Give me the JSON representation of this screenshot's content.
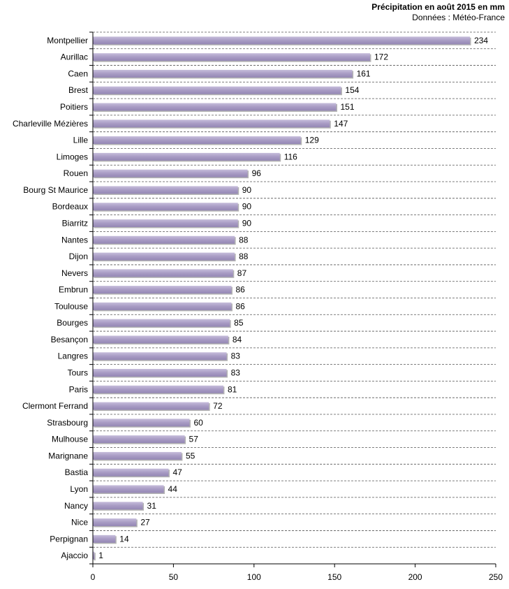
{
  "header": {
    "title": "Précipitation en août 2015 en mm",
    "source": "Données : Météo-France"
  },
  "chart_data": {
    "type": "bar",
    "orientation": "horizontal",
    "title": "Précipitation en août 2015 en mm",
    "subtitle": "Données : Météo-France",
    "xlabel": "",
    "ylabel": "",
    "xlim": [
      0,
      250
    ],
    "x_ticks": [
      0,
      50,
      100,
      150,
      200,
      250
    ],
    "bar_color": "#a89bc4",
    "grid": "horizontal dashed",
    "categories": [
      "Montpellier",
      "Aurillac",
      "Caen",
      "Brest",
      "Poitiers",
      "Charleville Mézières",
      "Lille",
      "Limoges",
      "Rouen",
      "Bourg St Maurice",
      "Bordeaux",
      "Biarritz",
      "Nantes",
      "Dijon",
      "Nevers",
      "Embrun",
      "Toulouse",
      "Bourges",
      "Besançon",
      "Langres",
      "Tours",
      "Paris",
      "Clermont Ferrand",
      "Strasbourg",
      "Mulhouse",
      "Marignane",
      "Bastia",
      "Lyon",
      "Nancy",
      "Nice",
      "Perpignan",
      "Ajaccio"
    ],
    "values": [
      234,
      172,
      161,
      154,
      151,
      147,
      129,
      116,
      96,
      90,
      90,
      90,
      88,
      88,
      87,
      86,
      86,
      85,
      84,
      83,
      83,
      81,
      72,
      60,
      57,
      55,
      47,
      44,
      31,
      27,
      14,
      1
    ]
  }
}
